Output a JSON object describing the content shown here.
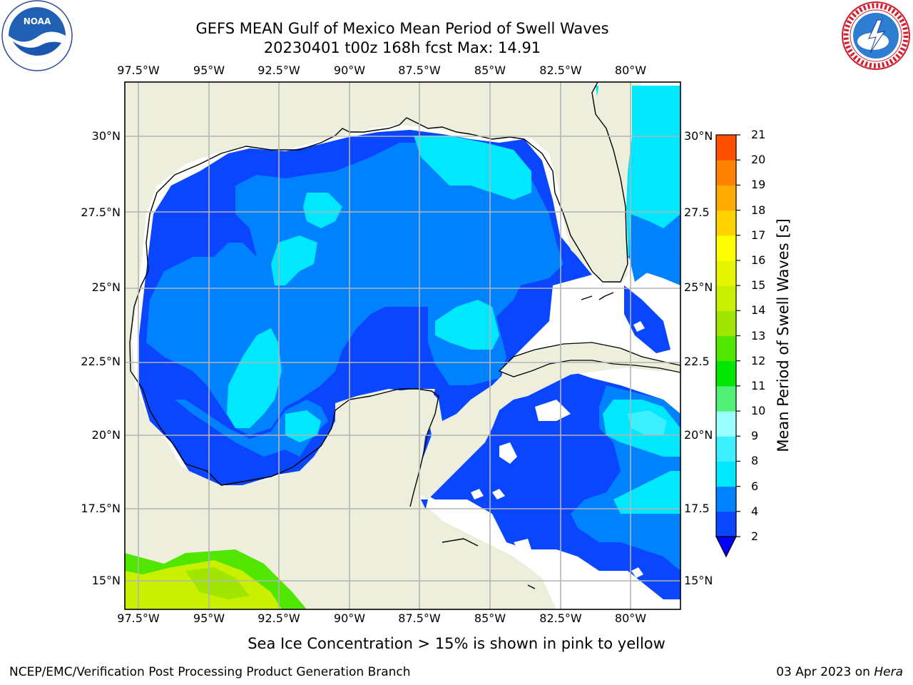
{
  "header": {
    "title_line1": "GEFS MEAN Gulf of Mexico Mean Period of Swell Waves",
    "title_line2": "20230401 t00z 168h fcst   Max: 14.91"
  },
  "logos": {
    "left": {
      "icon": "noaa-logo",
      "text": "NOAA"
    },
    "right": {
      "icon": "national-weather-service-logo"
    }
  },
  "map": {
    "lon_ticks": [
      "97.5°W",
      "95°W",
      "92.5°W",
      "90°W",
      "87.5°W",
      "85°W",
      "82.5°W",
      "80°W"
    ],
    "lat_ticks": [
      "30°N",
      "27.5°N",
      "25°N",
      "22.5°N",
      "20°N",
      "17.5°N",
      "15°N"
    ],
    "lat_ticks_right": [
      "30°N",
      "27.5",
      "25°N",
      "22.5",
      "20°N",
      "17.5",
      "15°N"
    ],
    "colors": {
      "land": "#eeeedd",
      "grid": "#b4b4b4",
      "coast": "#000000"
    }
  },
  "colorbar": {
    "label": "Mean Period of Swell Waves [s]",
    "ticks": [
      "2",
      "4",
      "6",
      "8",
      "9",
      "10",
      "11",
      "12",
      "13",
      "14",
      "15",
      "16",
      "17",
      "18",
      "19",
      "20",
      "21"
    ],
    "colors": [
      "#0a46ff",
      "#0082ff",
      "#00e8ff",
      "#3cf0ff",
      "#9bffff",
      "#50f078",
      "#00e600",
      "#50e600",
      "#a0e600",
      "#c8f000",
      "#e6f500",
      "#ffff00",
      "#ffd200",
      "#ffaa00",
      "#ff8200",
      "#ff5000",
      "#ff2800",
      "#ff0000"
    ],
    "under_color": "#0000ff"
  },
  "caption": "Sea Ice Concentration > 15% is shown in pink to yellow",
  "footer": {
    "left": "NCEP/EMC/Verification Post Processing Product Generation Branch",
    "right_date": "03 Apr 2023 on",
    "right_host": "Hera"
  }
}
